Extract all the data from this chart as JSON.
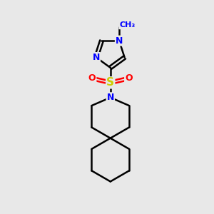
{
  "background_color": "#e8e8e8",
  "bond_color": "#000000",
  "nitrogen_color": "#0000ff",
  "sulfur_color": "#cccc00",
  "oxygen_color": "#ff0000",
  "line_width": 1.8,
  "figsize": [
    3.0,
    3.0
  ],
  "dpi": 100,
  "xlim": [
    -1.1,
    1.1
  ],
  "ylim": [
    -1.55,
    1.55
  ]
}
